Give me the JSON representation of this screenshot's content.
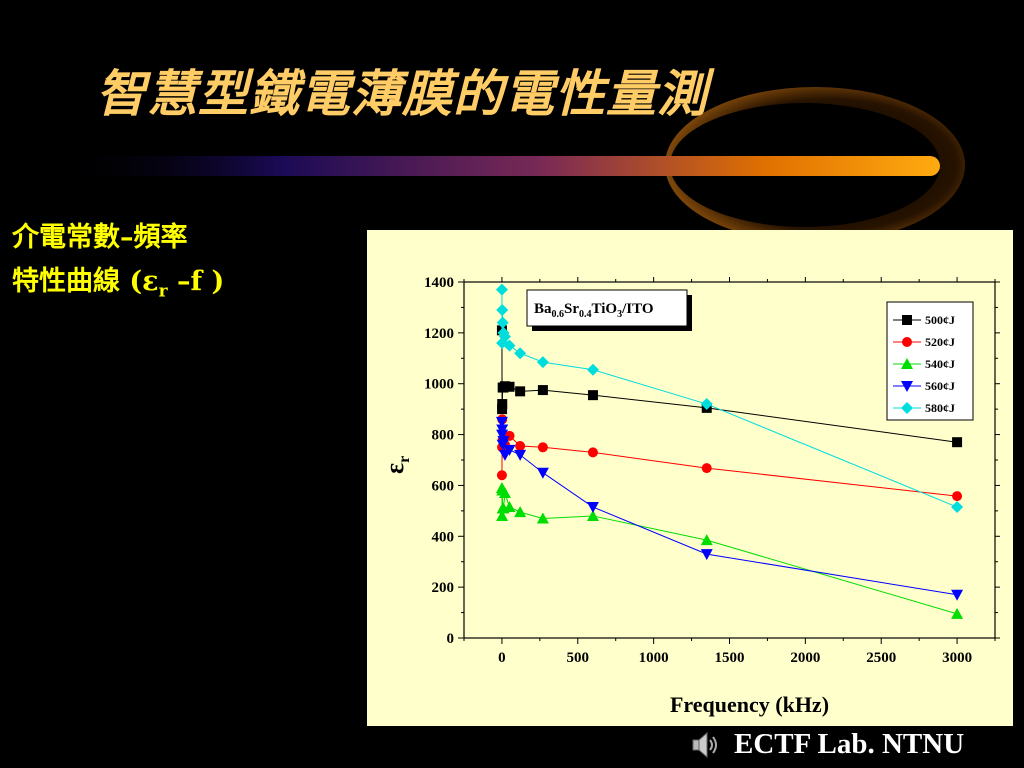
{
  "slide": {
    "title": "智慧型鐵電薄膜的電性量測",
    "side_label_line1": "介電常數–頻率",
    "side_label_line2_prefix": "特性曲線 (ε",
    "side_label_line2_sub": "r",
    "side_label_line2_suffix": " –f )",
    "footer": "ECTF Lab. NTNU",
    "speaker_icon": "speaker-icon"
  },
  "colors": {
    "background": "#000000",
    "title": "#ffcc66",
    "side_label": "#ffff00",
    "chart_bg": "#ffffcc"
  },
  "chart_data": {
    "type": "line",
    "title_parts": [
      "Ba",
      "0.6",
      "Sr",
      "0.4",
      "TiO",
      "3",
      "/ITO"
    ],
    "xlabel": "Frequency (kHz)",
    "ylabel": "ε",
    "ylabel_sub": "r",
    "xlim": [
      -250,
      3250
    ],
    "ylim": [
      0,
      1400
    ],
    "xticks": [
      0,
      500,
      1000,
      1500,
      2000,
      2500,
      3000
    ],
    "yticks": [
      0,
      200,
      400,
      600,
      800,
      1000,
      1200,
      1400
    ],
    "legend_position": "top-right",
    "grid": false,
    "series": [
      {
        "name": "500¢J",
        "color": "#000000",
        "marker": "square",
        "points": [
          [
            0,
            1210
          ],
          [
            1,
            900
          ],
          [
            2,
            920
          ],
          [
            5,
            985
          ],
          [
            10,
            985
          ],
          [
            20,
            990
          ],
          [
            50,
            988
          ],
          [
            120,
            970
          ],
          [
            270,
            975
          ],
          [
            600,
            955
          ],
          [
            1350,
            905
          ],
          [
            3000,
            770
          ]
        ]
      },
      {
        "name": "520¢J",
        "color": "#ff0000",
        "marker": "circle",
        "points": [
          [
            0,
            640
          ],
          [
            1,
            750
          ],
          [
            2,
            860
          ],
          [
            5,
            780
          ],
          [
            10,
            750
          ],
          [
            20,
            760
          ],
          [
            50,
            795
          ],
          [
            120,
            755
          ],
          [
            270,
            750
          ],
          [
            600,
            730
          ],
          [
            1350,
            668
          ],
          [
            3000,
            558
          ]
        ]
      },
      {
        "name": "540¢J",
        "color": "#00dd00",
        "marker": "triangle-up",
        "points": [
          [
            0,
            590
          ],
          [
            1,
            480
          ],
          [
            2,
            580
          ],
          [
            5,
            510
          ],
          [
            10,
            510
          ],
          [
            20,
            570
          ],
          [
            50,
            515
          ],
          [
            120,
            495
          ],
          [
            270,
            470
          ],
          [
            600,
            480
          ],
          [
            1350,
            385
          ],
          [
            3000,
            95
          ]
        ]
      },
      {
        "name": "560¢J",
        "color": "#0000ff",
        "marker": "triangle-down",
        "points": [
          [
            0,
            850
          ],
          [
            1,
            800
          ],
          [
            2,
            820
          ],
          [
            5,
            760
          ],
          [
            10,
            775
          ],
          [
            20,
            720
          ],
          [
            50,
            740
          ],
          [
            120,
            720
          ],
          [
            270,
            650
          ],
          [
            600,
            515
          ],
          [
            1350,
            330
          ],
          [
            3000,
            170
          ]
        ]
      },
      {
        "name": "580¢J",
        "color": "#00dddd",
        "marker": "diamond",
        "points": [
          [
            0,
            1370
          ],
          [
            1,
            1160
          ],
          [
            2,
            1290
          ],
          [
            5,
            1240
          ],
          [
            10,
            1200
          ],
          [
            20,
            1185
          ],
          [
            50,
            1150
          ],
          [
            120,
            1120
          ],
          [
            270,
            1085
          ],
          [
            600,
            1055
          ],
          [
            1350,
            920
          ],
          [
            3000,
            515
          ]
        ]
      }
    ]
  }
}
